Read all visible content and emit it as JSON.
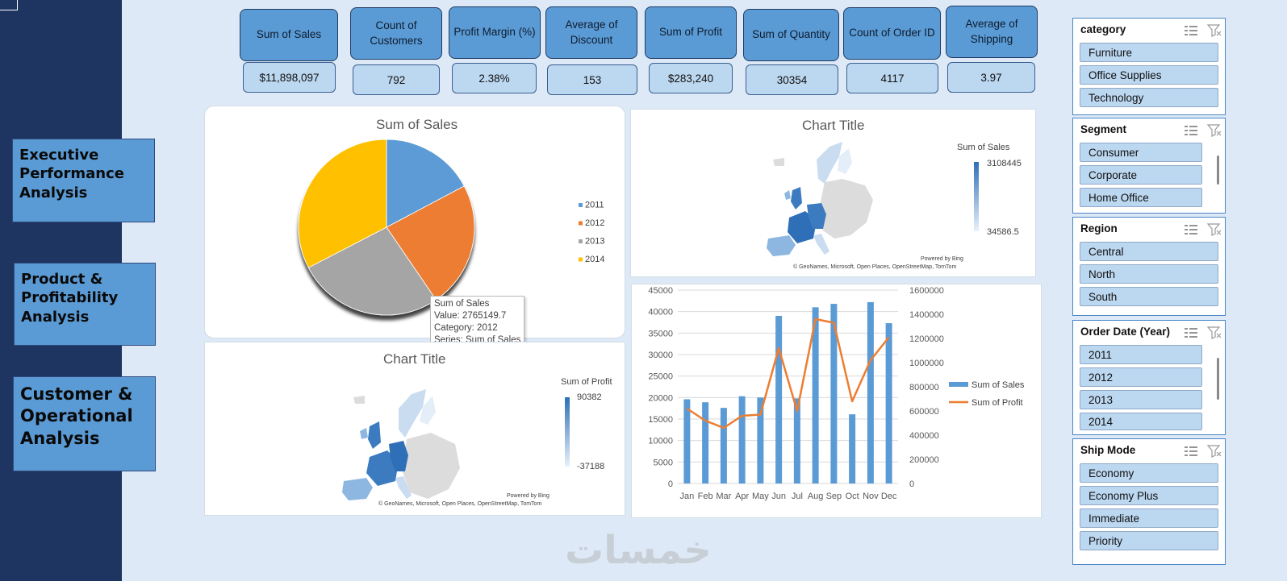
{
  "nav": {
    "executive": "Executive Performance Analysis",
    "product": "Product & Profitability Analysis",
    "customer": "Customer & Operational Analysis"
  },
  "kpis": [
    {
      "label": "Sum of Sales",
      "value": "$11,898,097"
    },
    {
      "label": "Count of Customers",
      "value": "792"
    },
    {
      "label": "Profit Margin (%)",
      "value": "2.38%"
    },
    {
      "label": "Average of Discount",
      "value": "153"
    },
    {
      "label": "Sum of Profit",
      "value": "$283,240"
    },
    {
      "label": "Sum of Quantity",
      "value": "30354"
    },
    {
      "label": "Count of Order ID",
      "value": "4117"
    },
    {
      "label": "Average of Shipping",
      "value": "3.97"
    }
  ],
  "colors": {
    "sidebar": "#1e3461",
    "accent": "#5b9bd5",
    "pie_2011": "#5b9bd5",
    "pie_2012": "#ed7d31",
    "pie_2013": "#a5a5a5",
    "pie_2014": "#ffc000",
    "line": "#ed7d31"
  },
  "pie": {
    "title": "Sum of Sales",
    "tooltip": {
      "line1": "Sum of Sales",
      "line2": "Value: 2765149.7",
      "line3": "Category: 2012",
      "line4": "Series: Sum of Sales"
    }
  },
  "map_sales": {
    "title": "Chart Title",
    "legend_title": "Sum of Sales",
    "max": "3108445",
    "min": "34586.5",
    "powered": "Powered by Bing",
    "credits": "© GeoNames, Microsoft, Open Places, OpenStreetMap, TomTom"
  },
  "map_profit": {
    "title": "Chart Title",
    "legend_title": "Sum of Profit",
    "max": "90382",
    "min": "-37188",
    "powered": "Powered by Bing",
    "credits": "© GeoNames, Microsoft, Open Places, OpenStreetMap, TomTom"
  },
  "chart_data": [
    {
      "type": "pie",
      "title": "Sum of Sales",
      "categories": [
        "2011",
        "2012",
        "2013",
        "2014"
      ],
      "values": [
        2050000,
        2765149.7,
        3200000,
        3880000
      ]
    },
    {
      "type": "bar",
      "title": "",
      "categories": [
        "Jan",
        "Feb",
        "Mar",
        "Apr",
        "May",
        "Jun",
        "Jul",
        "Aug",
        "Sep",
        "Oct",
        "Nov",
        "Dec"
      ],
      "series": [
        {
          "name": "Sum of Sales",
          "axis": "left",
          "kind": "bar",
          "values": [
            19600,
            18900,
            17600,
            20300,
            20000,
            39000,
            19800,
            41000,
            41800,
            16100,
            42200,
            37300
          ]
        },
        {
          "name": "Sum of Profit",
          "axis": "right",
          "kind": "line",
          "values": [
            620000,
            520000,
            460000,
            560000,
            570000,
            1120000,
            600000,
            1360000,
            1330000,
            680000,
            1020000,
            1210000
          ]
        }
      ],
      "ylim": [
        0,
        45000
      ],
      "yticks": [
        "0",
        "5000",
        "10000",
        "15000",
        "20000",
        "25000",
        "30000",
        "35000",
        "40000",
        "45000"
      ],
      "y2lim": [
        0,
        1600000
      ],
      "y2ticks": [
        "0",
        "200000",
        "400000",
        "600000",
        "800000",
        "1000000",
        "1200000",
        "1400000",
        "1600000"
      ],
      "legend": [
        "Sum of Sales",
        "Sum of Profit"
      ]
    }
  ],
  "slicers": [
    {
      "title": "category",
      "items": [
        "Furniture",
        "Office Supplies",
        "Technology"
      ]
    },
    {
      "title": "Segment",
      "items": [
        "Consumer",
        "Corporate",
        "Home Office"
      ]
    },
    {
      "title": "Region",
      "items": [
        "Central",
        "North",
        "South"
      ]
    },
    {
      "title": "Order Date (Year)",
      "items": [
        "2011",
        "2012",
        "2013",
        "2014"
      ]
    },
    {
      "title": "Ship Mode",
      "items": [
        "Economy",
        "Economy Plus",
        "Immediate",
        "Priority"
      ]
    }
  ],
  "watermark": "خمسات"
}
